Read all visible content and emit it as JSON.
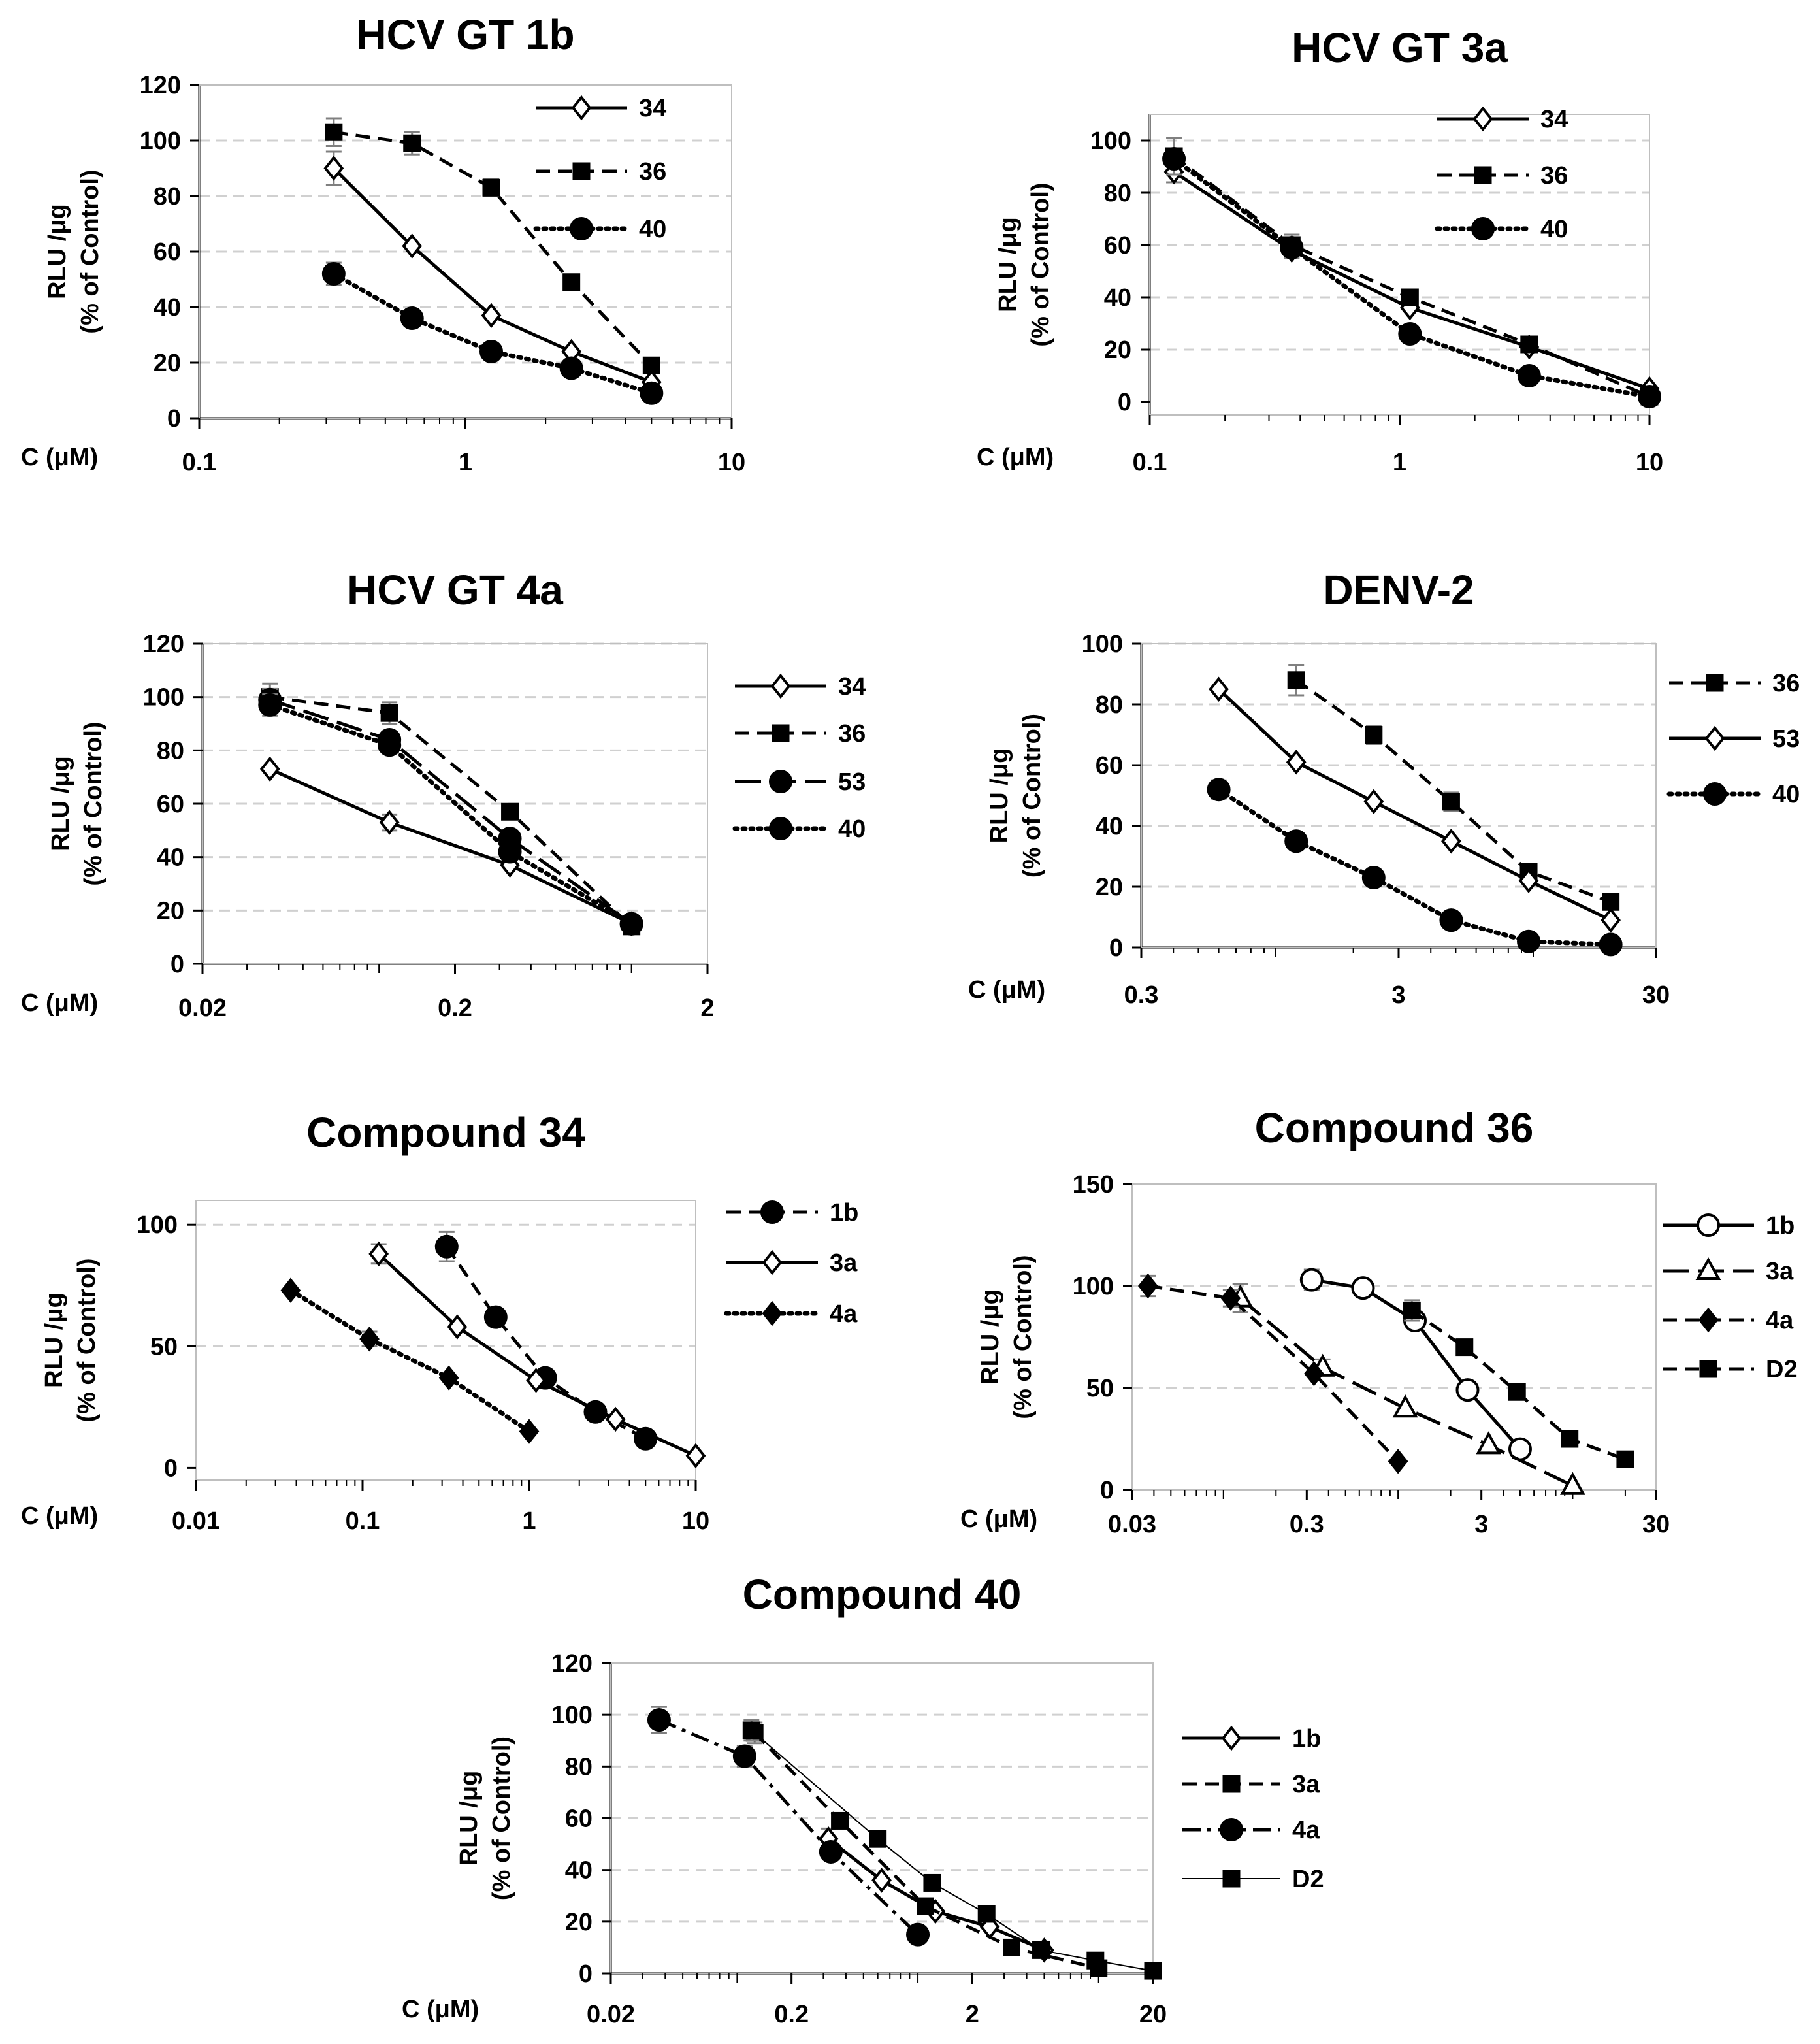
{
  "figure": {
    "background": "#ffffff",
    "grid_color": "#d0d0d0",
    "ink_color": "#000000",
    "errorbar_color": "#808080"
  },
  "chart_data": [
    {
      "type": "line",
      "title": "HCV GT 1b",
      "xlabel": "C (μM)",
      "ylabel_lines": [
        "RLU /μg",
        "(% of Control)"
      ],
      "xscale": "log",
      "xlim": [
        0.1,
        10
      ],
      "xticks": [
        0.1,
        1,
        10
      ],
      "xtick_labels": [
        "0.1",
        "1",
        "10"
      ],
      "ylim": [
        0,
        120
      ],
      "yticks": [
        0,
        20,
        40,
        60,
        80,
        100,
        120
      ],
      "ytick_labels": [
        "0",
        "20",
        "40",
        "60",
        "80",
        "100",
        "120"
      ],
      "grid": true,
      "legend_position": "top-right-inside",
      "series": [
        {
          "name": "34",
          "style": "solid",
          "marker": "diamond-open",
          "x": [
            0.32,
            0.63,
            1.25,
            2.5,
            5
          ],
          "y": [
            90,
            62,
            37,
            24,
            13
          ],
          "err": [
            6,
            0,
            0,
            0,
            0
          ]
        },
        {
          "name": "36",
          "style": "dashed",
          "marker": "square-filled",
          "x": [
            0.32,
            0.63,
            1.25,
            2.5,
            5
          ],
          "y": [
            103,
            99,
            83,
            49,
            19
          ],
          "err": [
            5,
            4,
            3,
            0,
            0
          ]
        },
        {
          "name": "40",
          "style": "dotted",
          "marker": "circle-filled",
          "x": [
            0.32,
            0.63,
            1.25,
            2.5,
            5
          ],
          "y": [
            52,
            36,
            24,
            18,
            9
          ],
          "err": [
            4,
            0,
            0,
            0,
            0
          ]
        }
      ]
    },
    {
      "type": "line",
      "title": "HCV GT 3a",
      "xlabel": "C (μM)",
      "ylabel_lines": [
        "RLU /μg",
        "(% of Control)"
      ],
      "xscale": "log",
      "xlim": [
        0.1,
        10
      ],
      "xticks": [
        0.1,
        1,
        10
      ],
      "xtick_labels": [
        "0.1",
        "1",
        "10"
      ],
      "ylim": [
        -5,
        110
      ],
      "yticks": [
        0,
        20,
        40,
        60,
        80,
        100
      ],
      "ytick_labels": [
        "0",
        "20",
        "40",
        "60",
        "80",
        "100"
      ],
      "grid": true,
      "legend_position": "top-right-inside",
      "series": [
        {
          "name": "34",
          "style": "solid",
          "marker": "diamond-open",
          "x": [
            0.125,
            0.37,
            1.1,
            3.3,
            10
          ],
          "y": [
            88,
            58,
            36,
            21,
            5
          ],
          "err": [
            4,
            3,
            0,
            0,
            0
          ]
        },
        {
          "name": "36",
          "style": "dashed",
          "marker": "square-filled",
          "x": [
            0.125,
            0.37,
            1.1,
            3.3,
            10
          ],
          "y": [
            94,
            60,
            40,
            22,
            2
          ],
          "err": [
            7,
            4,
            0,
            0,
            0
          ]
        },
        {
          "name": "40",
          "style": "dotted",
          "marker": "circle-filled",
          "x": [
            0.125,
            0.37,
            1.1,
            3.3,
            10
          ],
          "y": [
            93,
            59,
            26,
            10,
            2
          ],
          "err": [
            0,
            0,
            0,
            0,
            0
          ]
        }
      ]
    },
    {
      "type": "line",
      "title": "HCV GT 4a",
      "xlabel": "C (μM)",
      "ylabel_lines": [
        "RLU /μg",
        "(% of Control)"
      ],
      "xscale": "log",
      "xlim": [
        0.02,
        2
      ],
      "xticks": [
        0.02,
        0.2,
        2
      ],
      "xtick_labels": [
        "0.02",
        "0.2",
        "2"
      ],
      "ylim": [
        0,
        120
      ],
      "yticks": [
        0,
        20,
        40,
        60,
        80,
        100,
        120
      ],
      "ytick_labels": [
        "0",
        "20",
        "40",
        "60",
        "80",
        "100",
        "120"
      ],
      "grid": true,
      "legend_position": "right",
      "series": [
        {
          "name": "34",
          "style": "solid",
          "marker": "diamond-open",
          "x": [
            0.037,
            0.11,
            0.33,
            1.0
          ],
          "y": [
            73,
            53,
            37,
            15
          ],
          "err": [
            0,
            3,
            0,
            0
          ]
        },
        {
          "name": "36",
          "style": "dashed",
          "marker": "square-filled",
          "x": [
            0.037,
            0.11,
            0.33,
            1.0
          ],
          "y": [
            100,
            94,
            57,
            14
          ],
          "err": [
            5,
            4,
            0,
            0
          ]
        },
        {
          "name": "53",
          "style": "longdash",
          "marker": "circle-filled",
          "x": [
            0.037,
            0.11,
            0.33,
            1.0
          ],
          "y": [
            99,
            84,
            47,
            15
          ],
          "err": [
            4,
            3,
            0,
            0
          ]
        },
        {
          "name": "40",
          "style": "dotted",
          "marker": "circle-filled",
          "x": [
            0.037,
            0.11,
            0.33,
            1.0
          ],
          "y": [
            97,
            82,
            42,
            15
          ],
          "err": [
            4,
            3,
            0,
            0
          ]
        }
      ]
    },
    {
      "type": "line",
      "title": "DENV-2",
      "xlabel": "C (μM)",
      "ylabel_lines": [
        "RLU /μg",
        "(% of Control)"
      ],
      "xscale": "log",
      "xlim": [
        0.3,
        30
      ],
      "xticks": [
        0.3,
        3,
        30
      ],
      "xtick_labels": [
        "0.3",
        "3",
        "30"
      ],
      "ylim": [
        0,
        100
      ],
      "yticks": [
        0,
        20,
        40,
        60,
        80,
        100
      ],
      "ytick_labels": [
        "0",
        "20",
        "40",
        "60",
        "80",
        "100"
      ],
      "grid": true,
      "legend_position": "right",
      "series": [
        {
          "name": "36",
          "style": "dashed",
          "marker": "square-filled",
          "x": [
            1.2,
            2.4,
            4.8,
            9.6,
            20
          ],
          "y": [
            88,
            70,
            48,
            25,
            15
          ],
          "err": [
            5,
            3,
            3,
            0,
            0
          ]
        },
        {
          "name": "53",
          "style": "solid",
          "marker": "diamond-open",
          "x": [
            0.6,
            1.2,
            2.4,
            4.8,
            9.6,
            20
          ],
          "y": [
            85,
            61,
            48,
            35,
            22,
            9
          ],
          "err": [
            0,
            0,
            0,
            0,
            0,
            0
          ]
        },
        {
          "name": "40",
          "style": "dotted",
          "marker": "circle-filled",
          "x": [
            0.6,
            1.2,
            2.4,
            4.8,
            9.6,
            20
          ],
          "y": [
            52,
            35,
            23,
            9,
            2,
            1
          ],
          "err": [
            3,
            0,
            0,
            0,
            0,
            0
          ]
        }
      ]
    },
    {
      "type": "line",
      "title": "Compound 34",
      "xlabel": "C (μM)",
      "ylabel_lines": [
        "RLU /μg",
        "(% of Control)"
      ],
      "xscale": "log",
      "xlim": [
        0.01,
        10
      ],
      "xticks": [
        0.01,
        0.1,
        1,
        10
      ],
      "xtick_labels": [
        "0.01",
        "0.1",
        "1",
        "10"
      ],
      "ylim": [
        -5,
        110
      ],
      "yticks": [
        0,
        50,
        100
      ],
      "ytick_labels": [
        "0",
        "50",
        "100"
      ],
      "grid": true,
      "legend_position": "right",
      "series": [
        {
          "name": "1b",
          "style": "dashed",
          "marker": "circle-filled",
          "x": [
            0.32,
            0.63,
            1.25,
            2.5,
            5
          ],
          "y": [
            91,
            62,
            37,
            23,
            12
          ],
          "err": [
            6,
            0,
            0,
            0,
            0
          ]
        },
        {
          "name": "3a",
          "style": "solid",
          "marker": "diamond-open",
          "x": [
            0.125,
            0.37,
            1.1,
            3.3,
            10
          ],
          "y": [
            88,
            58,
            36,
            20,
            5
          ],
          "err": [
            4,
            0,
            0,
            0,
            0
          ]
        },
        {
          "name": "4a",
          "style": "dotted",
          "marker": "diamond-filled",
          "x": [
            0.037,
            0.11,
            0.33,
            1.0
          ],
          "y": [
            73,
            53,
            37,
            15
          ],
          "err": [
            0,
            3,
            0,
            0
          ]
        }
      ]
    },
    {
      "type": "line",
      "title": "Compound 36",
      "xlabel": "C (μM)",
      "ylabel_lines": [
        "RLU /μg",
        "(% of Control)"
      ],
      "xscale": "log",
      "xlim": [
        0.03,
        30
      ],
      "xticks": [
        0.03,
        0.3,
        3,
        30
      ],
      "xtick_labels": [
        "0.03",
        "0.3",
        "3",
        "30"
      ],
      "ylim": [
        0,
        150
      ],
      "yticks": [
        0,
        50,
        100,
        150
      ],
      "ytick_labels": [
        "0",
        "50",
        "100",
        "150"
      ],
      "grid": true,
      "legend_position": "right",
      "series": [
        {
          "name": "1b",
          "style": "solid",
          "marker": "circle-open",
          "x": [
            0.32,
            0.63,
            1.25,
            2.5,
            5
          ],
          "y": [
            103,
            99,
            83,
            49,
            20
          ],
          "err": [
            5,
            0,
            0,
            0,
            0
          ]
        },
        {
          "name": "3a",
          "style": "longdash",
          "marker": "triangle-open",
          "x": [
            0.125,
            0.37,
            1.1,
            3.3,
            10
          ],
          "y": [
            94,
            60,
            40,
            22,
            2
          ],
          "err": [
            7,
            4,
            0,
            0,
            0
          ]
        },
        {
          "name": "4a",
          "style": "dashed",
          "marker": "diamond-filled",
          "x": [
            0.037,
            0.11,
            0.33,
            1.0
          ],
          "y": [
            100,
            94,
            57,
            14
          ],
          "err": [
            5,
            4,
            0,
            0
          ]
        },
        {
          "name": "D2",
          "style": "dashed",
          "marker": "square-filled",
          "x": [
            1.2,
            2.4,
            4.8,
            9.6,
            20
          ],
          "y": [
            88,
            70,
            48,
            25,
            15
          ],
          "err": [
            5,
            0,
            3,
            0,
            0
          ]
        }
      ]
    },
    {
      "type": "line",
      "title": "Compound 40",
      "xlabel": "C (μM)",
      "ylabel_lines": [
        "RLU /μg",
        "(% of Control)"
      ],
      "xscale": "log",
      "xlim": [
        0.02,
        20
      ],
      "xticks": [
        0.02,
        0.2,
        2,
        20
      ],
      "xtick_labels": [
        "0.02",
        "0.2",
        "2",
        "20"
      ],
      "ylim": [
        0,
        120
      ],
      "yticks": [
        0,
        20,
        40,
        60,
        80,
        100,
        120
      ],
      "ytick_labels": [
        "0",
        "20",
        "40",
        "60",
        "80",
        "100",
        "120"
      ],
      "grid": true,
      "legend_position": "right",
      "series": [
        {
          "name": "1b",
          "style": "solid",
          "marker": "diamond-open",
          "x": [
            0.32,
            0.63,
            1.25,
            2.5,
            5
          ],
          "y": [
            52,
            36,
            24,
            18,
            9
          ],
          "err": [
            4,
            0,
            0,
            0,
            0
          ]
        },
        {
          "name": "3a",
          "style": "dashed",
          "marker": "square-filled",
          "x": [
            0.125,
            0.37,
            1.1,
            3.3,
            10
          ],
          "y": [
            93,
            59,
            26,
            10,
            2
          ],
          "err": [
            4,
            0,
            0,
            0,
            0
          ]
        },
        {
          "name": "4a",
          "style": "dashdot",
          "marker": "circle-filled",
          "x": [
            0.037,
            0.11,
            0.33,
            1.0
          ],
          "y": [
            98,
            84,
            47,
            15
          ],
          "err": [
            5,
            4,
            3,
            0
          ]
        },
        {
          "name": "D2",
          "style": "thin",
          "marker": "square-filled",
          "x": [
            0.12,
            0.6,
            1.2,
            2.4,
            4.8,
            9.6,
            20
          ],
          "y": [
            94,
            52,
            35,
            23,
            9,
            5,
            1
          ],
          "err": [
            4,
            3,
            0,
            0,
            0,
            0,
            0
          ]
        }
      ]
    }
  ]
}
